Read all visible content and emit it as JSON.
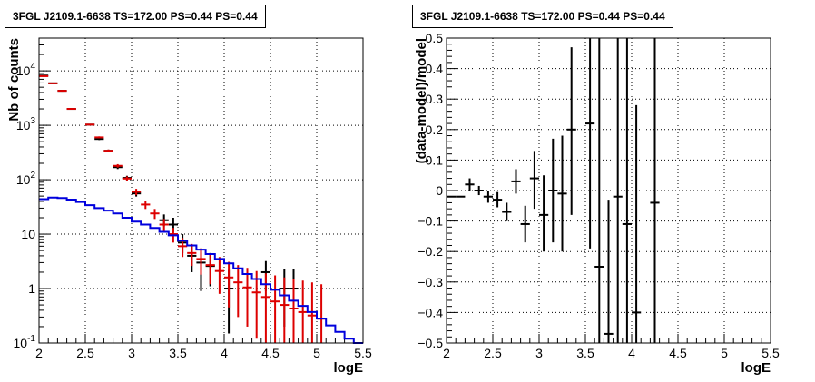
{
  "chart_data": [
    {
      "type": "scatter",
      "title": "3FGL J2109.1-6638 TS=172.00 PS=0.44 PS=0.44",
      "xlabel": "logE",
      "ylabel": "Nb of counts",
      "xlim": [
        2,
        5.5
      ],
      "ylim": [
        0.1,
        40000
      ],
      "yscale": "log",
      "grid": true,
      "x_ticks": [
        "2",
        "2.5",
        "3",
        "3.5",
        "4",
        "4.5",
        "5",
        "5.5"
      ],
      "y_ticks": [
        {
          "value": 0.1,
          "label": "10",
          "exp": "-1"
        },
        {
          "value": 1,
          "label": "1",
          "exp": ""
        },
        {
          "value": 10,
          "label": "10",
          "exp": ""
        },
        {
          "value": 100,
          "label": "10",
          "exp": "2"
        },
        {
          "value": 1000,
          "label": "10",
          "exp": "3"
        },
        {
          "value": 10000,
          "label": "10",
          "exp": "4"
        }
      ],
      "series": [
        {
          "style": "points",
          "color": "#000000",
          "bin_halfwidth": 0.05,
          "points": [
            {
              "x": 2.05,
              "y": 8200,
              "lo": 8000,
              "hi": 8400
            },
            {
              "x": 2.15,
              "y": 5900,
              "lo": 5750,
              "hi": 6050
            },
            {
              "x": 2.25,
              "y": 4300,
              "lo": 4150,
              "hi": 4450
            },
            {
              "x": 2.35,
              "y": 2000,
              "lo": 1950,
              "hi": 2050
            },
            {
              "x": 2.55,
              "y": 1030,
              "lo": 1000,
              "hi": 1060
            },
            {
              "x": 2.65,
              "y": 560,
              "lo": 536,
              "hi": 584
            },
            {
              "x": 2.75,
              "y": 340,
              "lo": 322,
              "hi": 358
            },
            {
              "x": 2.85,
              "y": 170,
              "lo": 157,
              "hi": 183
            },
            {
              "x": 2.95,
              "y": 108,
              "lo": 98,
              "hi": 118
            },
            {
              "x": 3.05,
              "y": 56,
              "lo": 49,
              "hi": 63
            },
            {
              "x": 3.35,
              "y": 18,
              "lo": 14,
              "hi": 23
            },
            {
              "x": 3.45,
              "y": 15,
              "lo": 11,
              "hi": 20
            },
            {
              "x": 3.55,
              "y": 7,
              "lo": 4.5,
              "hi": 10
            },
            {
              "x": 3.65,
              "y": 4,
              "lo": 2,
              "hi": 6
            },
            {
              "x": 3.75,
              "y": 3,
              "lo": 0.9,
              "hi": 5
            },
            {
              "x": 3.85,
              "y": 2.6,
              "lo": 1.1,
              "hi": 4.5
            },
            {
              "x": 4.05,
              "y": 1,
              "lo": 0.15,
              "hi": 2.2
            },
            {
              "x": 4.45,
              "y": 2,
              "lo": 0.9,
              "hi": 3.2
            },
            {
              "x": 4.65,
              "y": 1,
              "lo": 0.2,
              "hi": 2.3
            },
            {
              "x": 4.75,
              "y": 1,
              "lo": 0.2,
              "hi": 2.3
            }
          ]
        },
        {
          "style": "points",
          "color": "#dd0000",
          "bin_halfwidth": 0.05,
          "points": [
            {
              "x": 2.05,
              "y": 8000,
              "lo": 7800,
              "hi": 8200
            },
            {
              "x": 2.15,
              "y": 5900,
              "lo": 5750,
              "hi": 6050
            },
            {
              "x": 2.25,
              "y": 4300,
              "lo": 4150,
              "hi": 4450
            },
            {
              "x": 2.35,
              "y": 2000,
              "lo": 1950,
              "hi": 2050
            },
            {
              "x": 2.55,
              "y": 1030,
              "lo": 1000,
              "hi": 1060
            },
            {
              "x": 2.65,
              "y": 600,
              "lo": 575,
              "hi": 625
            },
            {
              "x": 2.75,
              "y": 340,
              "lo": 322,
              "hi": 358
            },
            {
              "x": 2.85,
              "y": 180,
              "lo": 167,
              "hi": 193
            },
            {
              "x": 2.95,
              "y": 105,
              "lo": 95,
              "hi": 115
            },
            {
              "x": 3.05,
              "y": 60,
              "lo": 52,
              "hi": 68
            },
            {
              "x": 3.15,
              "y": 35,
              "lo": 29,
              "hi": 41
            },
            {
              "x": 3.25,
              "y": 24,
              "lo": 19,
              "hi": 29
            },
            {
              "x": 3.35,
              "y": 15,
              "lo": 11,
              "hi": 19
            },
            {
              "x": 3.45,
              "y": 10,
              "lo": 7,
              "hi": 13
            },
            {
              "x": 3.55,
              "y": 6,
              "lo": 3.8,
              "hi": 8.5
            },
            {
              "x": 3.65,
              "y": 4.5,
              "lo": 2.6,
              "hi": 6.6
            },
            {
              "x": 3.75,
              "y": 3.5,
              "lo": 1.8,
              "hi": 5.5
            },
            {
              "x": 3.85,
              "y": 2.7,
              "lo": 1.2,
              "hi": 4.4
            },
            {
              "x": 3.95,
              "y": 2.1,
              "lo": 0.8,
              "hi": 3.8
            },
            {
              "x": 4.05,
              "y": 1.6,
              "lo": 0.45,
              "hi": 3.1
            },
            {
              "x": 4.15,
              "y": 1.3,
              "lo": 0.3,
              "hi": 2.7
            },
            {
              "x": 4.25,
              "y": 1.05,
              "lo": 0.2,
              "hi": 2.4
            },
            {
              "x": 4.35,
              "y": 0.85,
              "lo": 0.12,
              "hi": 2.1
            },
            {
              "x": 4.45,
              "y": 0.7,
              "lo": 0.1,
              "hi": 1.9
            },
            {
              "x": 4.55,
              "y": 0.58,
              "lo": 0.1,
              "hi": 1.75
            },
            {
              "x": 4.65,
              "y": 0.5,
              "lo": 0.1,
              "hi": 1.6
            },
            {
              "x": 4.75,
              "y": 0.43,
              "lo": 0.1,
              "hi": 1.5
            },
            {
              "x": 4.85,
              "y": 0.37,
              "lo": 0.1,
              "hi": 1.4
            },
            {
              "x": 4.95,
              "y": 0.32,
              "lo": 0.1,
              "hi": 1.3
            },
            {
              "x": 5.05,
              "y": 0.28,
              "lo": 0.1,
              "hi": 1.2
            }
          ]
        },
        {
          "style": "step",
          "color": "#0000dd",
          "bin_width": 0.1,
          "x_start": 2.0,
          "values": [
            44,
            47,
            46,
            43,
            39,
            34,
            30,
            27,
            24,
            20,
            17,
            15,
            13,
            11,
            9.5,
            7.6,
            6.2,
            5.2,
            4.3,
            3.5,
            2.9,
            2.35,
            1.85,
            1.5,
            1.2,
            0.95,
            0.75,
            0.6,
            0.48,
            0.37,
            0.28,
            0.21,
            0.16,
            0.12,
            0.1
          ]
        }
      ]
    },
    {
      "type": "scatter",
      "title": "3FGL J2109.1-6638 TS=172.00 PS=0.44 PS=0.44",
      "xlabel": "logE",
      "ylabel": "(data-model)/model",
      "xlim": [
        2,
        5.5
      ],
      "ylim": [
        -0.5,
        0.5
      ],
      "grid": true,
      "x_ticks": [
        "2",
        "2.5",
        "3",
        "3.5",
        "4",
        "4.5",
        "5",
        "5.5"
      ],
      "y_ticks": [
        "−0.5",
        "−0.4",
        "−0.3",
        "−0.2",
        "−0.1",
        "0",
        "0.1",
        "0.2",
        "0.3",
        "0.4",
        "0.5"
      ],
      "series": [
        {
          "style": "points",
          "color": "#000000",
          "bin_halfwidth": 0.05,
          "points": [
            {
              "x": 2.05,
              "y": -0.02,
              "lo": -0.02,
              "hi": -0.02
            },
            {
              "x": 2.15,
              "y": -0.02,
              "lo": -0.02,
              "hi": -0.02
            },
            {
              "x": 2.25,
              "y": 0.02,
              "lo": 0.0,
              "hi": 0.04
            },
            {
              "x": 2.35,
              "y": 0.0,
              "lo": -0.015,
              "hi": 0.015
            },
            {
              "x": 2.45,
              "y": -0.02,
              "lo": -0.04,
              "hi": 0.0
            },
            {
              "x": 2.55,
              "y": -0.03,
              "lo": -0.055,
              "hi": -0.005
            },
            {
              "x": 2.65,
              "y": -0.07,
              "lo": -0.1,
              "hi": -0.04
            },
            {
              "x": 2.75,
              "y": 0.03,
              "lo": -0.01,
              "hi": 0.07
            },
            {
              "x": 2.85,
              "y": -0.11,
              "lo": -0.17,
              "hi": -0.05
            },
            {
              "x": 2.95,
              "y": 0.04,
              "lo": -0.06,
              "hi": 0.13
            },
            {
              "x": 3.05,
              "y": -0.08,
              "lo": -0.2,
              "hi": 0.05
            },
            {
              "x": 3.15,
              "y": 0.0,
              "lo": -0.17,
              "hi": 0.17
            },
            {
              "x": 3.25,
              "y": -0.01,
              "lo": -0.2,
              "hi": 0.18
            },
            {
              "x": 3.35,
              "y": 0.2,
              "lo": -0.08,
              "hi": 0.47
            },
            {
              "x": 3.55,
              "y": 0.22,
              "lo": -0.19,
              "hi": 0.5
            },
            {
              "x": 3.65,
              "y": -0.25,
              "lo": -0.5,
              "hi": 0.5
            },
            {
              "x": 3.75,
              "y": -0.47,
              "lo": -0.5,
              "hi": -0.03
            },
            {
              "x": 3.85,
              "y": -0.02,
              "lo": -0.5,
              "hi": 0.5
            },
            {
              "x": 3.95,
              "y": -0.11,
              "lo": -0.5,
              "hi": 0.5
            },
            {
              "x": 4.05,
              "y": -0.4,
              "lo": -0.5,
              "hi": 0.28
            },
            {
              "x": 4.25,
              "y": -0.04,
              "lo": -0.5,
              "hi": 0.5
            }
          ]
        }
      ]
    }
  ]
}
